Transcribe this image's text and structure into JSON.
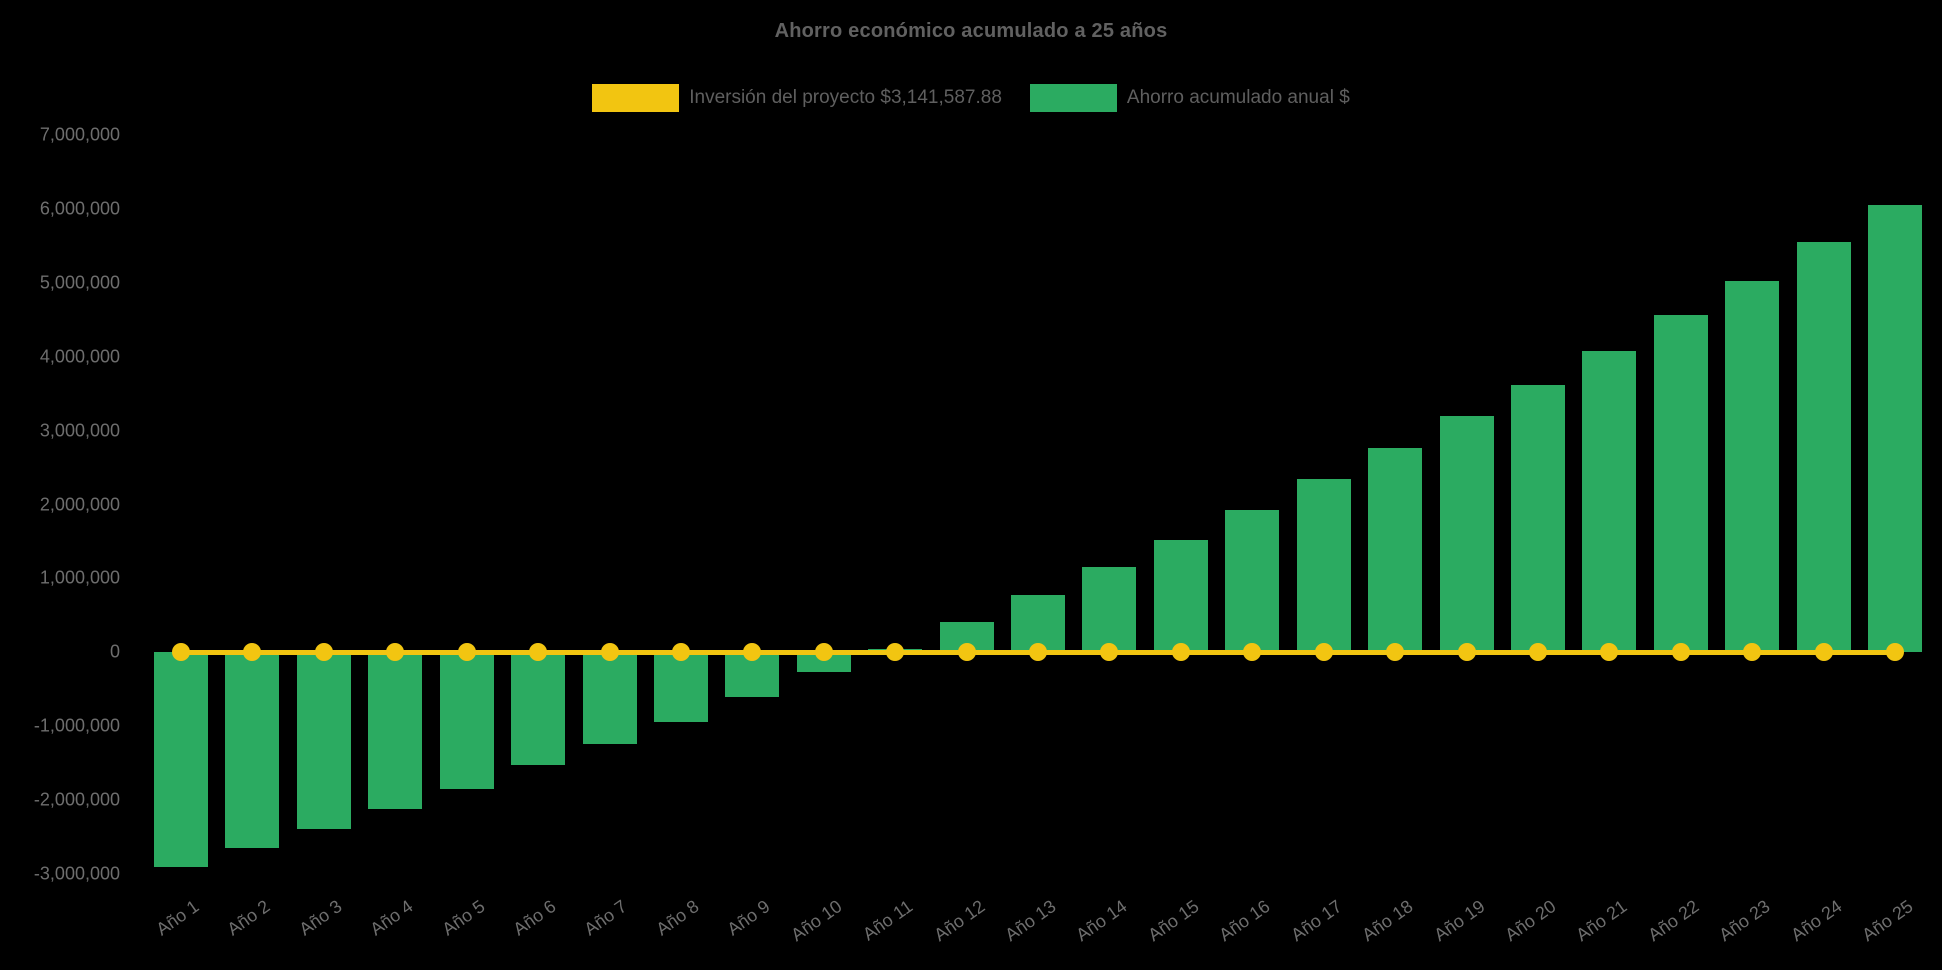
{
  "title": "Ahorro económico acumulado a 25 años",
  "legend": {
    "investment": {
      "label": "Inversión del proyecto $3,141,587.88",
      "color": "#F2C511"
    },
    "savings": {
      "label": "Ahorro acumulado anual $",
      "color": "#2BAB61"
    }
  },
  "colors": {
    "background": "#000000",
    "title_text": "#616161",
    "legend_text": "#5f5f5f",
    "axis_text": "#6e6e6e",
    "bar_green": "#2BAB61",
    "line_yellow": "#F2C511"
  },
  "chart_data": {
    "type": "bar",
    "title": "Ahorro económico acumulado a 25 años",
    "categories": [
      "Año 1",
      "Año 2",
      "Año 3",
      "Año 4",
      "Año 5",
      "Año 6",
      "Año 7",
      "Año 8",
      "Año 9",
      "Año 10",
      "Año 11",
      "Año 12",
      "Año 13",
      "Año 14",
      "Año 15",
      "Año 16",
      "Año 17",
      "Año 18",
      "Año 19",
      "Año 20",
      "Año 21",
      "Año 22",
      "Año 23",
      "Año 24",
      "Año 25"
    ],
    "series": [
      {
        "name": "Ahorro acumulado anual $",
        "type": "bar",
        "color": "#2BAB61",
        "values": [
          -2910000,
          -2650000,
          -2390000,
          -2120000,
          -1850000,
          -1520000,
          -1240000,
          -940000,
          -600000,
          -270000,
          50000,
          410000,
          780000,
          1160000,
          1520000,
          1930000,
          2340000,
          2760000,
          3200000,
          3620000,
          4080000,
          4560000,
          5030000,
          5550000,
          6050000
        ]
      },
      {
        "name": "Inversión del proyecto $3,141,587.88",
        "type": "line",
        "color": "#F2C511",
        "values": [
          0,
          0,
          0,
          0,
          0,
          0,
          0,
          0,
          0,
          0,
          0,
          0,
          0,
          0,
          0,
          0,
          0,
          0,
          0,
          0,
          0,
          0,
          0,
          0,
          0
        ]
      }
    ],
    "xlabel": "",
    "ylabel": "",
    "ylim": [
      -3000000,
      7000000
    ],
    "ytick_step": 1000000,
    "ytick_labels": [
      "7,000,000",
      "6,000,000",
      "5,000,000",
      "4,000,000",
      "3,000,000",
      "2,000,000",
      "1,000,000",
      "0",
      "-1,000,000",
      "-2,000,000",
      "-3,000,000"
    ],
    "grid": false,
    "legend_position": "top",
    "x_label_rotation": -35
  }
}
